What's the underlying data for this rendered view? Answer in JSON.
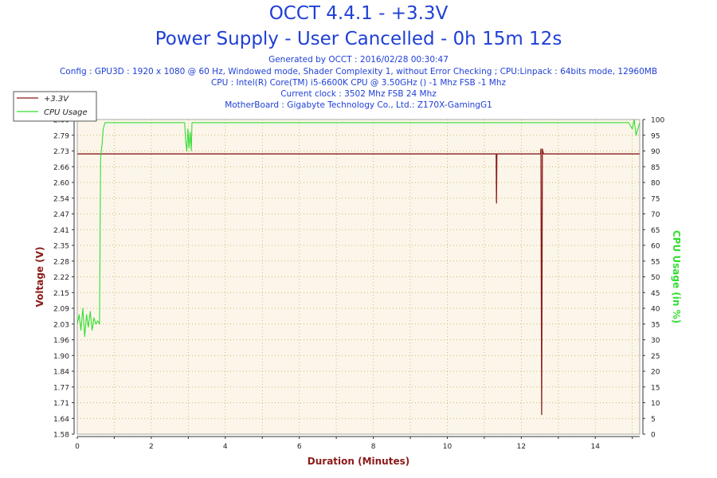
{
  "header": {
    "title_line1": "OCCT 4.4.1 - +3.3V",
    "title_line2": "Power Supply - User Cancelled - 0h 15m 12s",
    "generated": "Generated by OCCT : 2016/02/28 00:30:47",
    "config": "Config : GPU3D : 1920 x 1080 @ 60 Hz, Windowed mode, Shader Complexity 1, without Error Checking ; CPU:Linpack : 64bits mode, 12960MB",
    "cpu": "CPU : Intel(R) Core(TM) i5-6600K CPU @ 3.50GHz () -1 Mhz FSB -1 Mhz",
    "clock": "Current clock : 3502 Mhz FSB 24 Mhz",
    "motherboard": "MotherBoard : Gigabyte Technology Co., Ltd.: Z170X-GamingG1"
  },
  "colors": {
    "voltage": "#8b1a1a",
    "cpu": "#33dd33",
    "title": "#1f3fd6",
    "plot_bg": "#fbf6e9",
    "grid": "#c8a050"
  },
  "chart_data": {
    "type": "line",
    "xlabel": "Duration (Minutes)",
    "ylabel_left": "Voltage (V)",
    "ylabel_right": "CPU Usage (in %)",
    "xlim": [
      0,
      15.2
    ],
    "ylim_left": [
      1.58,
      2.86
    ],
    "ylim_right": [
      0,
      100
    ],
    "x_ticks": [
      "0",
      "2",
      "4",
      "6",
      "8",
      "10",
      "12",
      "14"
    ],
    "y_ticks_left": [
      "2.86",
      "2.79",
      "2.73",
      "2.66",
      "2.60",
      "2.54",
      "2.47",
      "2.41",
      "2.35",
      "2.28",
      "2.22",
      "2.15",
      "2.09",
      "2.03",
      "1.96",
      "1.90",
      "1.84",
      "1.77",
      "1.71",
      "1.64",
      "1.58"
    ],
    "y_ticks_right": [
      "100",
      "95",
      "90",
      "85",
      "80",
      "75",
      "70",
      "65",
      "60",
      "55",
      "50",
      "45",
      "40",
      "35",
      "30",
      "25",
      "20",
      "15",
      "10",
      "5",
      "0"
    ],
    "grid": true,
    "legend_position": "top-left",
    "series": [
      {
        "name": "+3.3V",
        "axis": "left",
        "points": [
          [
            0,
            2.72
          ],
          [
            11.32,
            2.72
          ],
          [
            11.33,
            2.52
          ],
          [
            11.34,
            2.72
          ],
          [
            12.52,
            2.72
          ],
          [
            12.53,
            2.74
          ],
          [
            12.55,
            1.66
          ],
          [
            12.57,
            2.74
          ],
          [
            12.6,
            2.72
          ],
          [
            15.2,
            2.72
          ]
        ]
      },
      {
        "name": "CPU Usage",
        "axis": "right",
        "points": [
          [
            0,
            35
          ],
          [
            0.05,
            38
          ],
          [
            0.1,
            33
          ],
          [
            0.15,
            40
          ],
          [
            0.2,
            31
          ],
          [
            0.25,
            38
          ],
          [
            0.3,
            34
          ],
          [
            0.35,
            39
          ],
          [
            0.4,
            33
          ],
          [
            0.45,
            37
          ],
          [
            0.5,
            35
          ],
          [
            0.55,
            36
          ],
          [
            0.6,
            35
          ],
          [
            0.63,
            88
          ],
          [
            0.67,
            92
          ],
          [
            0.7,
            97
          ],
          [
            0.75,
            99
          ],
          [
            1.0,
            99
          ],
          [
            2.0,
            99
          ],
          [
            2.9,
            99
          ],
          [
            2.93,
            93
          ],
          [
            2.96,
            90
          ],
          [
            2.99,
            97
          ],
          [
            3.02,
            91
          ],
          [
            3.05,
            96
          ],
          [
            3.08,
            90
          ],
          [
            3.1,
            99
          ],
          [
            4.0,
            99
          ],
          [
            6.0,
            99
          ],
          [
            8.0,
            99
          ],
          [
            10.0,
            99
          ],
          [
            12.0,
            99
          ],
          [
            14.0,
            99
          ],
          [
            14.9,
            99
          ],
          [
            15.0,
            97
          ],
          [
            15.05,
            100
          ],
          [
            15.1,
            95
          ],
          [
            15.2,
            99
          ]
        ]
      }
    ]
  }
}
